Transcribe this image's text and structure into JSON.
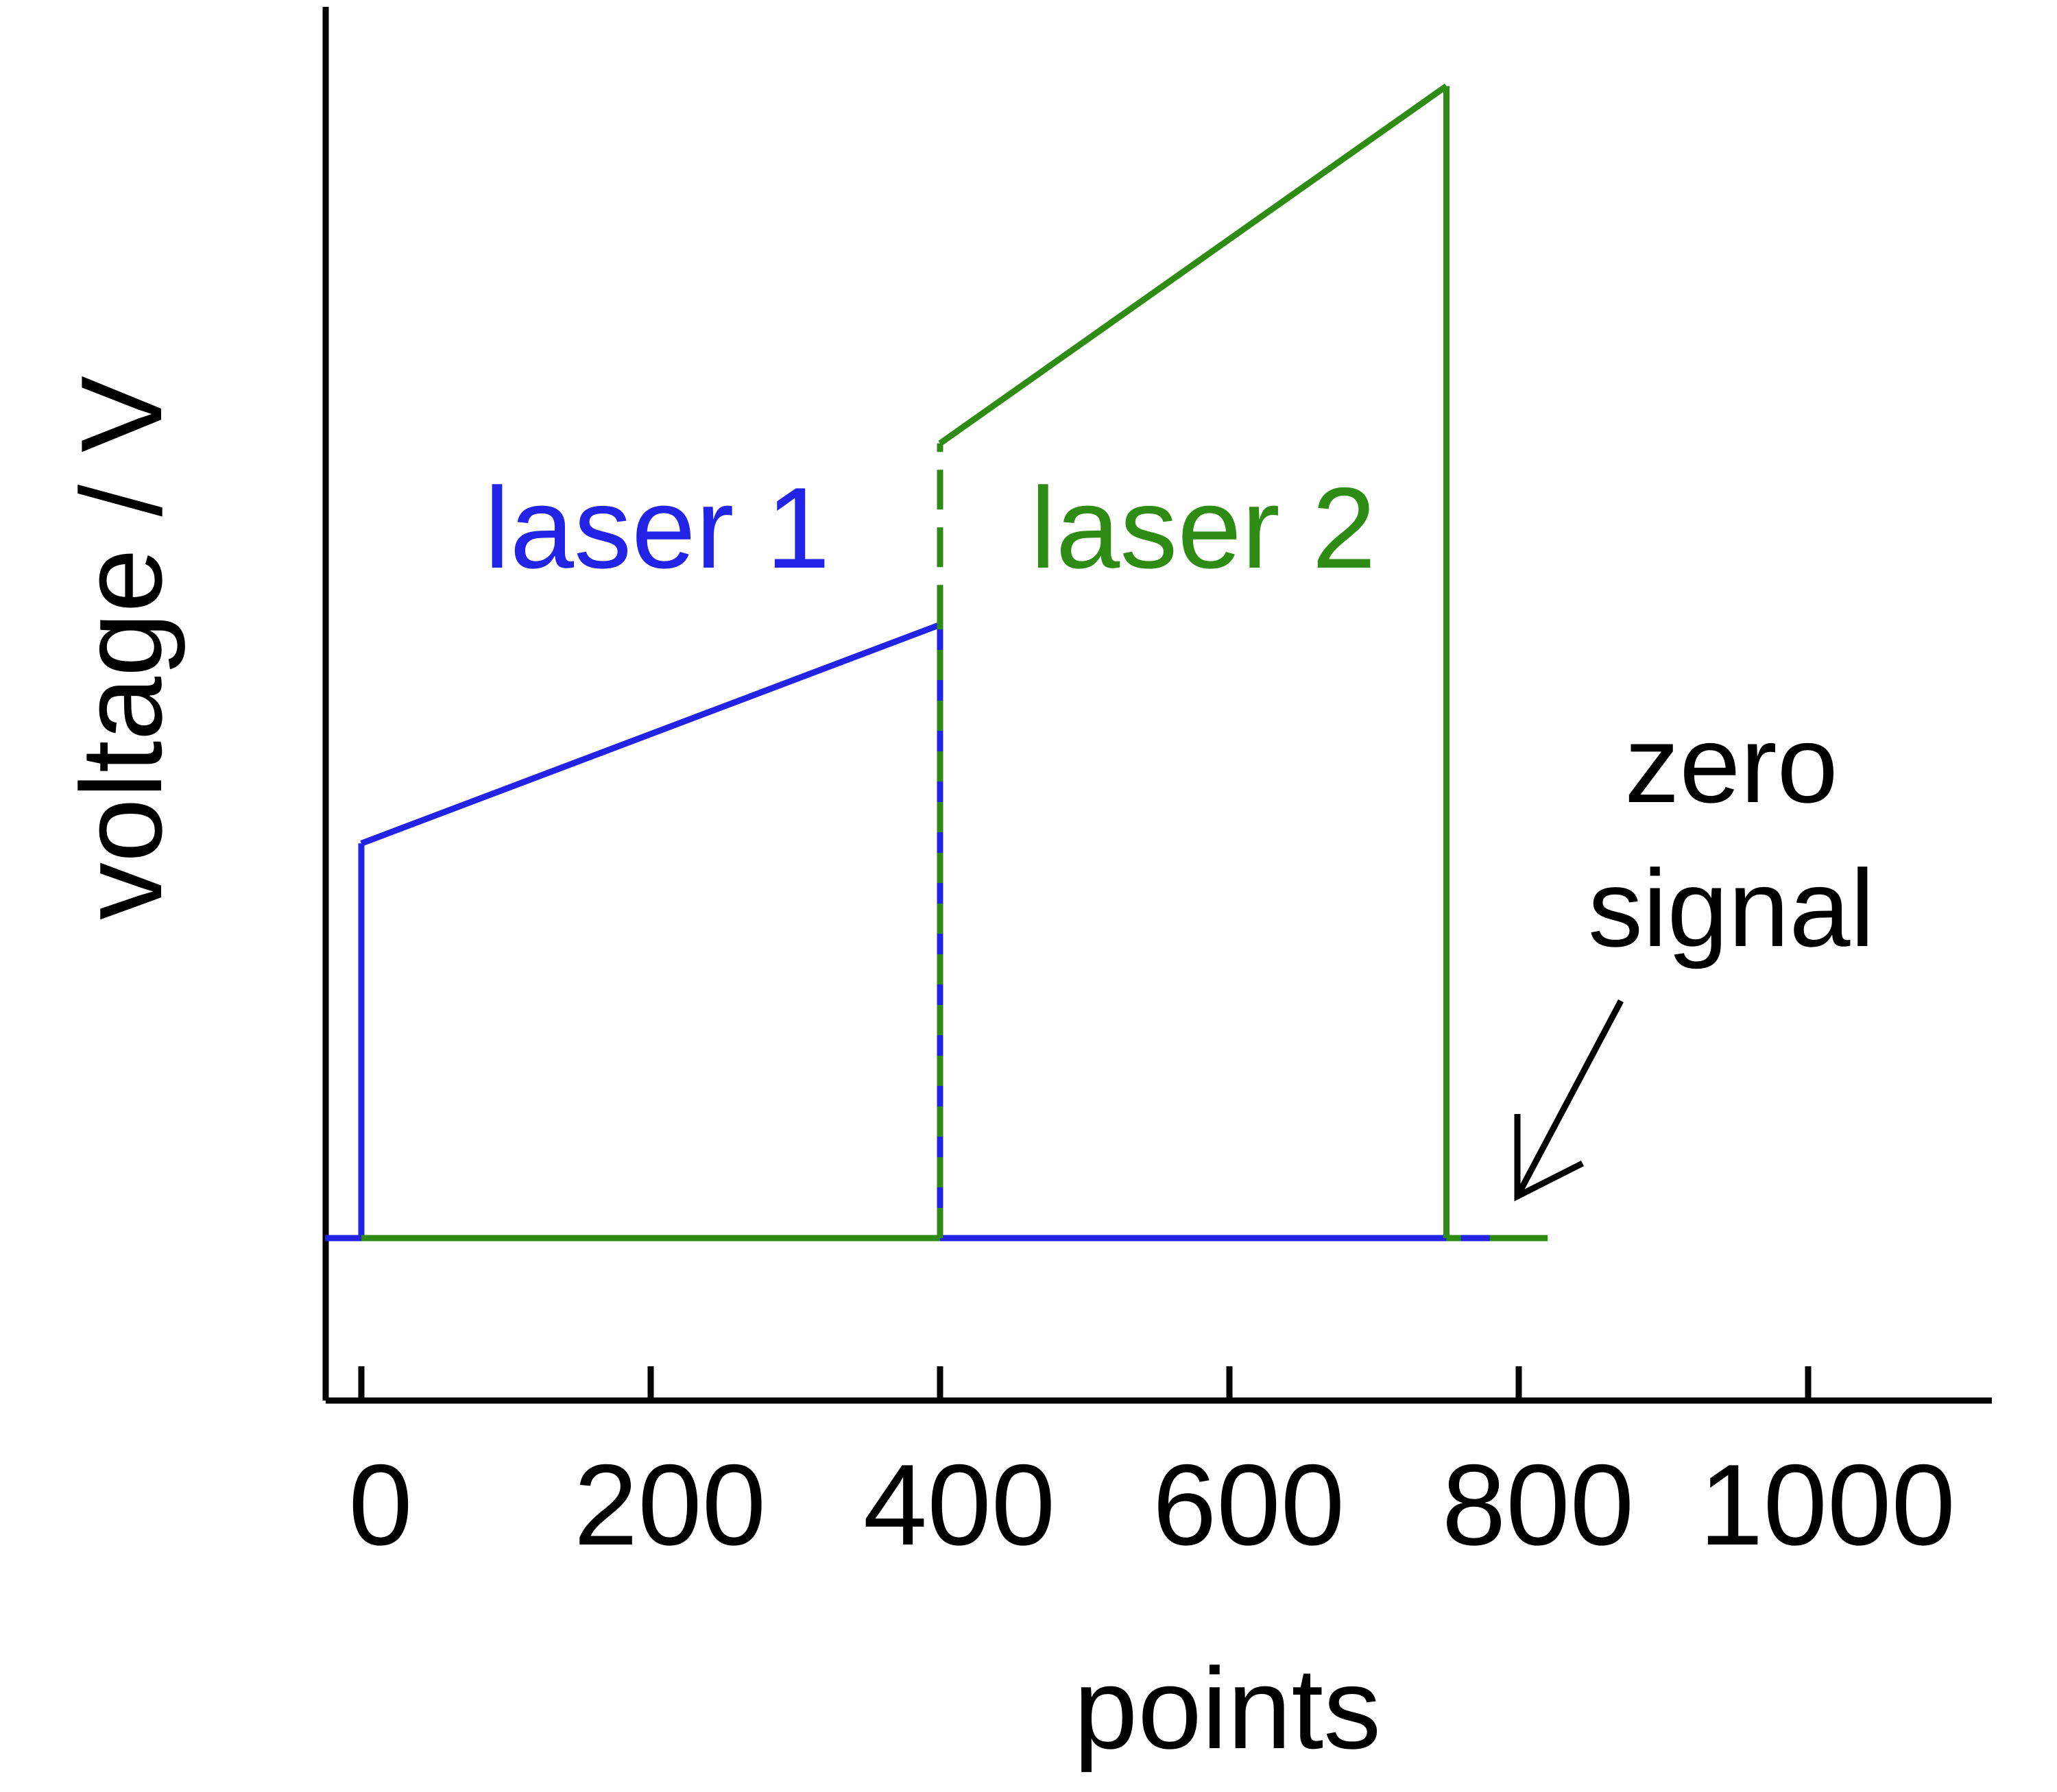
{
  "colors": {
    "axis": "#000000",
    "laser1": "#2323e6",
    "laser2": "#2e8b14",
    "text": "#000000",
    "background": "#ffffff"
  },
  "chart_data": {
    "type": "line",
    "title": "",
    "xlabel": "points",
    "ylabel": "voltage / V",
    "xlim": [
      -60,
      1000
    ],
    "x_ticks": [
      0,
      200,
      400,
      600,
      800,
      1000
    ],
    "x_tick_labels": [
      "0",
      "200",
      "400",
      "600",
      "800",
      "1000"
    ],
    "ylim": [
      -0.3,
      2.4
    ],
    "y_ticks": [],
    "grid": false,
    "legend": "none",
    "series": [
      {
        "name": "laser 1",
        "color": "#2323e6",
        "x": [
          -25,
          0,
          0,
          400,
          400,
          780
        ],
        "y": [
          0,
          0,
          0.74,
          1.15,
          0,
          0
        ]
      },
      {
        "name": "laser 2",
        "color": "#2e8b14",
        "x": [
          0,
          400,
          400,
          750,
          750,
          820
        ],
        "y": [
          0,
          0,
          1.49,
          2.16,
          0,
          0
        ]
      }
    ],
    "annotations": [
      {
        "text": "laser 1",
        "x": 195,
        "y": 1.33,
        "color": "#2323e6"
      },
      {
        "text": "laser 2",
        "x": 570,
        "y": 1.33,
        "color": "#2e8b14"
      },
      {
        "text_lines": [
          "zero",
          "signal"
        ],
        "x": 925,
        "y": 0.75,
        "color": "#000000"
      }
    ],
    "arrow": {
      "from": [
        840,
        0.43
      ],
      "to": [
        795,
        0.07
      ],
      "color": "#000000"
    }
  }
}
